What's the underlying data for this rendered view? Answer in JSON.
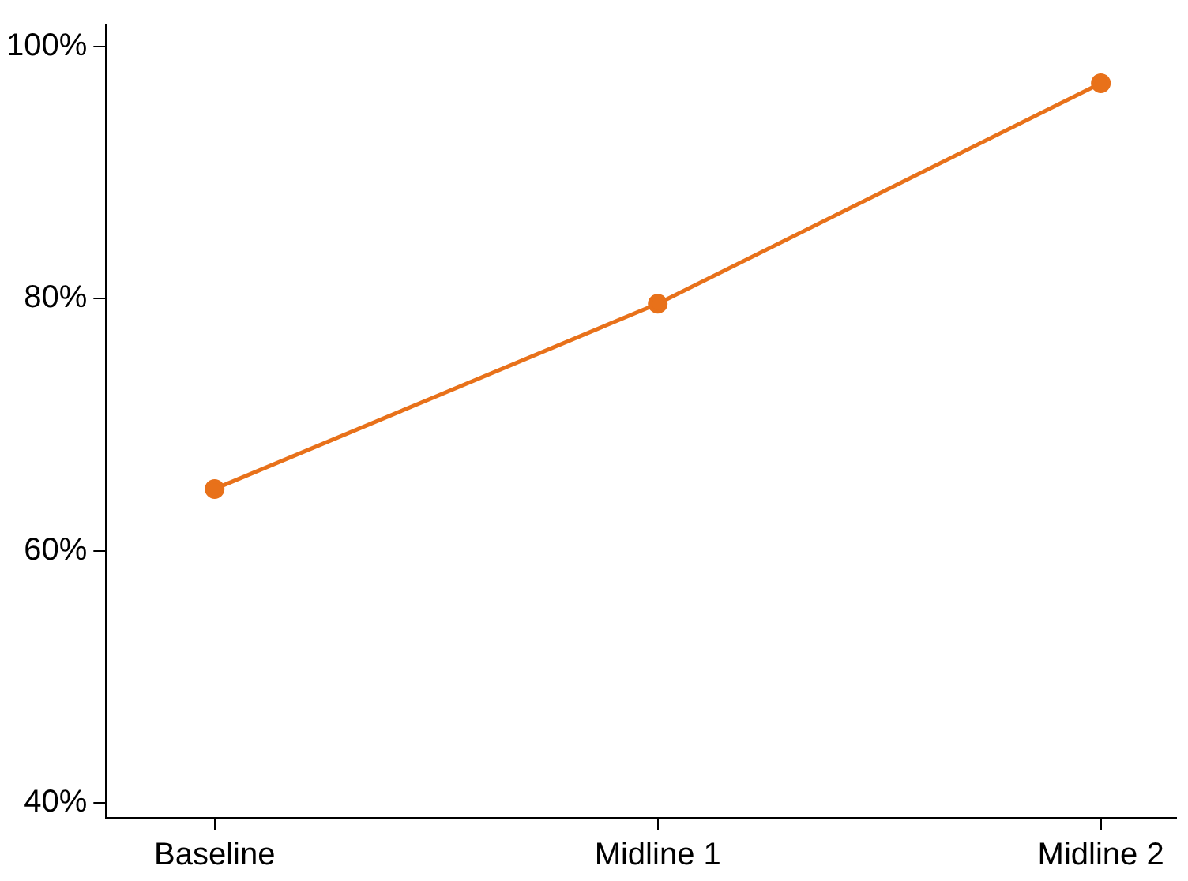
{
  "chart_data": {
    "type": "line",
    "categories": [
      "Baseline",
      "Midline 1",
      "Midline 2"
    ],
    "series": [
      {
        "color": "#e8711a",
        "values": [
          64.9,
          79.6,
          97.1
        ]
      }
    ],
    "ylim": [
      38.8,
      101.7
    ],
    "yticks": [
      {
        "value": 40,
        "label": "40%"
      },
      {
        "value": 60,
        "label": "60%"
      },
      {
        "value": 80,
        "label": "80%"
      },
      {
        "value": 100,
        "label": "100%"
      }
    ],
    "grid": false,
    "legend": false,
    "marker": "circle",
    "line_style": "solid"
  }
}
